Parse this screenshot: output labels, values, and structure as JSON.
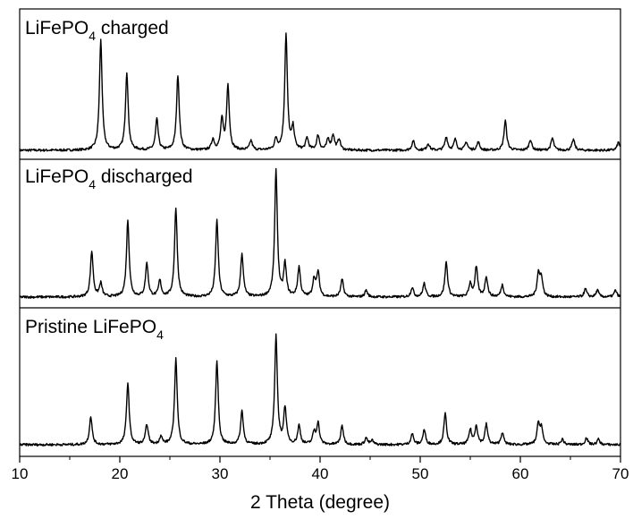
{
  "chart_data": {
    "type": "line",
    "xlabel": "2 Theta (degree)",
    "ylabel": "",
    "xlim": [
      10,
      70
    ],
    "xticks": [
      10,
      20,
      30,
      40,
      50,
      60,
      70
    ],
    "grid": false,
    "panels": [
      {
        "label_main": "LiFePO",
        "label_sub": "4",
        "label_rest": " charged",
        "peaks": [
          {
            "x": 18.1,
            "h": 0.82
          },
          {
            "x": 20.7,
            "h": 0.58
          },
          {
            "x": 23.7,
            "h": 0.23
          },
          {
            "x": 25.8,
            "h": 0.56
          },
          {
            "x": 29.3,
            "h": 0.08
          },
          {
            "x": 30.2,
            "h": 0.22
          },
          {
            "x": 30.8,
            "h": 0.48
          },
          {
            "x": 33.1,
            "h": 0.07
          },
          {
            "x": 35.6,
            "h": 0.08
          },
          {
            "x": 36.6,
            "h": 0.86
          },
          {
            "x": 37.3,
            "h": 0.16
          },
          {
            "x": 38.7,
            "h": 0.09
          },
          {
            "x": 39.8,
            "h": 0.11
          },
          {
            "x": 40.8,
            "h": 0.08
          },
          {
            "x": 41.3,
            "h": 0.11
          },
          {
            "x": 41.9,
            "h": 0.08
          },
          {
            "x": 49.3,
            "h": 0.07
          },
          {
            "x": 50.8,
            "h": 0.05
          },
          {
            "x": 52.6,
            "h": 0.1
          },
          {
            "x": 53.5,
            "h": 0.08
          },
          {
            "x": 54.6,
            "h": 0.06
          },
          {
            "x": 55.8,
            "h": 0.06
          },
          {
            "x": 58.5,
            "h": 0.22
          },
          {
            "x": 61.0,
            "h": 0.08
          },
          {
            "x": 63.2,
            "h": 0.09
          },
          {
            "x": 65.3,
            "h": 0.08
          },
          {
            "x": 69.8,
            "h": 0.06
          }
        ]
      },
      {
        "label_main": "LiFePO",
        "label_sub": "4",
        "label_rest": " discharged",
        "peaks": [
          {
            "x": 17.2,
            "h": 0.34
          },
          {
            "x": 18.1,
            "h": 0.1
          },
          {
            "x": 20.8,
            "h": 0.57
          },
          {
            "x": 22.7,
            "h": 0.25
          },
          {
            "x": 24.0,
            "h": 0.12
          },
          {
            "x": 25.6,
            "h": 0.66
          },
          {
            "x": 29.7,
            "h": 0.57
          },
          {
            "x": 32.2,
            "h": 0.32
          },
          {
            "x": 35.6,
            "h": 0.94
          },
          {
            "x": 36.5,
            "h": 0.24
          },
          {
            "x": 37.9,
            "h": 0.22
          },
          {
            "x": 39.4,
            "h": 0.13
          },
          {
            "x": 39.8,
            "h": 0.18
          },
          {
            "x": 42.2,
            "h": 0.13
          },
          {
            "x": 44.6,
            "h": 0.05
          },
          {
            "x": 49.2,
            "h": 0.07
          },
          {
            "x": 50.4,
            "h": 0.1
          },
          {
            "x": 52.6,
            "h": 0.26
          },
          {
            "x": 55.0,
            "h": 0.1
          },
          {
            "x": 55.6,
            "h": 0.22
          },
          {
            "x": 56.6,
            "h": 0.15
          },
          {
            "x": 58.2,
            "h": 0.09
          },
          {
            "x": 61.8,
            "h": 0.17
          },
          {
            "x": 62.1,
            "h": 0.14
          },
          {
            "x": 66.5,
            "h": 0.06
          },
          {
            "x": 67.7,
            "h": 0.05
          },
          {
            "x": 69.5,
            "h": 0.05
          }
        ]
      },
      {
        "label_main": "Pristine LiFePO",
        "label_sub": "4",
        "label_rest": "",
        "peaks": [
          {
            "x": 17.1,
            "h": 0.21
          },
          {
            "x": 20.8,
            "h": 0.46
          },
          {
            "x": 22.7,
            "h": 0.15
          },
          {
            "x": 24.1,
            "h": 0.06
          },
          {
            "x": 25.6,
            "h": 0.64
          },
          {
            "x": 29.7,
            "h": 0.62
          },
          {
            "x": 32.2,
            "h": 0.25
          },
          {
            "x": 35.6,
            "h": 0.81
          },
          {
            "x": 36.5,
            "h": 0.27
          },
          {
            "x": 37.9,
            "h": 0.14
          },
          {
            "x": 39.4,
            "h": 0.09
          },
          {
            "x": 39.8,
            "h": 0.16
          },
          {
            "x": 42.2,
            "h": 0.14
          },
          {
            "x": 44.6,
            "h": 0.05
          },
          {
            "x": 45.2,
            "h": 0.03
          },
          {
            "x": 49.2,
            "h": 0.08
          },
          {
            "x": 50.4,
            "h": 0.11
          },
          {
            "x": 52.5,
            "h": 0.23
          },
          {
            "x": 55.0,
            "h": 0.11
          },
          {
            "x": 55.6,
            "h": 0.14
          },
          {
            "x": 56.6,
            "h": 0.15
          },
          {
            "x": 58.2,
            "h": 0.09
          },
          {
            "x": 61.8,
            "h": 0.15
          },
          {
            "x": 62.1,
            "h": 0.12
          },
          {
            "x": 64.2,
            "h": 0.04
          },
          {
            "x": 66.6,
            "h": 0.05
          },
          {
            "x": 67.8,
            "h": 0.04
          }
        ]
      }
    ]
  }
}
